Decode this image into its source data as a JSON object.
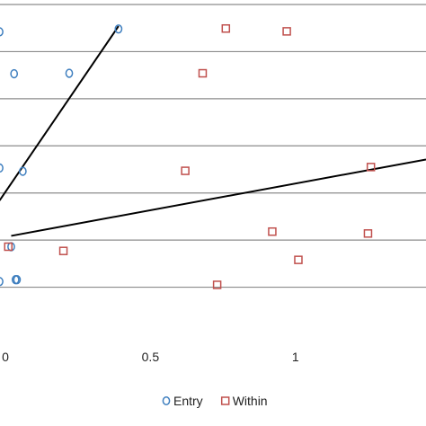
{
  "chart_data": {
    "type": "scatter",
    "title": "",
    "xlabel": "",
    "ylabel": "",
    "x_tick_labels": [
      {
        "x": 0,
        "label": "0"
      },
      {
        "x": 0.5,
        "label": "0.5"
      },
      {
        "x": 1,
        "label": "1"
      }
    ],
    "xlim": [
      0,
      1.45
    ],
    "ylim": [
      0,
      7
    ],
    "gridlines_y": [
      1,
      2,
      3,
      4,
      5,
      6,
      7
    ],
    "grid": true,
    "legend": "bottom",
    "series": [
      {
        "name": "Entry",
        "marker": "circle",
        "color": "#3f7fbf",
        "points": [
          {
            "x": -0.02,
            "y": 6.42
          },
          {
            "x": 0.03,
            "y": 5.53
          },
          {
            "x": 0.22,
            "y": 5.54
          },
          {
            "x": 0.39,
            "y": 6.48
          },
          {
            "x": -0.02,
            "y": 3.53
          },
          {
            "x": 0.06,
            "y": 3.46
          },
          {
            "x": 0.02,
            "y": 1.86
          },
          {
            "x": 0.035,
            "y": 1.16
          },
          {
            "x": 0.04,
            "y": 1.16
          },
          {
            "x": -0.02,
            "y": 1.12
          }
        ]
      },
      {
        "name": "Within",
        "marker": "square",
        "color": "#c0504d",
        "points": [
          {
            "x": 0.76,
            "y": 6.49
          },
          {
            "x": 0.97,
            "y": 6.43
          },
          {
            "x": 0.68,
            "y": 5.54
          },
          {
            "x": 0.62,
            "y": 3.47
          },
          {
            "x": 1.26,
            "y": 3.55
          },
          {
            "x": 0.92,
            "y": 2.18
          },
          {
            "x": 1.25,
            "y": 2.14
          },
          {
            "x": 0.2,
            "y": 1.77
          },
          {
            "x": 0.01,
            "y": 1.86
          },
          {
            "x": 1.01,
            "y": 1.58
          },
          {
            "x": 0.73,
            "y": 1.05
          }
        ]
      }
    ],
    "trendlines": [
      {
        "series": "Entry",
        "x1": -0.02,
        "y1": 2.84,
        "x2": 0.39,
        "y2": 6.54,
        "color": "#000000"
      },
      {
        "series": "Within",
        "x1": 0.02,
        "y1": 2.09,
        "x2": 1.45,
        "y2": 3.71,
        "color": "#000000"
      }
    ]
  }
}
